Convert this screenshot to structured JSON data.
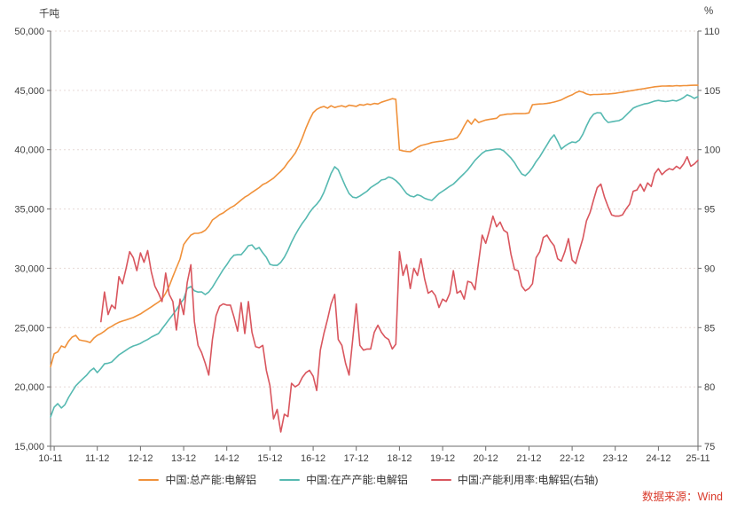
{
  "chart_data": {
    "type": "line",
    "title": "",
    "grid": "horizontal-dashed",
    "legend_position": "bottom-center",
    "left_axis": {
      "unit_label": "千吨",
      "min": 15000,
      "max": 50000,
      "tick_labels": [
        "50,000",
        "45,000",
        "40,000",
        "35,000",
        "30,000",
        "25,000",
        "20,000",
        "15,000"
      ],
      "tick_values": [
        50000,
        45000,
        40000,
        35000,
        30000,
        25000,
        20000,
        15000
      ]
    },
    "right_axis": {
      "unit_label": "%",
      "min": 75,
      "max": 110,
      "tick_labels": [
        "110",
        "105",
        "100",
        "95",
        "90",
        "85",
        "80",
        "75"
      ],
      "tick_values": [
        110,
        105,
        100,
        95,
        90,
        85,
        80,
        75
      ]
    },
    "x_axis": {
      "n_points": 181,
      "start_month": "2010-11",
      "end_month": "2025-11",
      "tick_labels": [
        "10-11",
        "11-12",
        "12-12",
        "13-12",
        "14-12",
        "15-12",
        "16-12",
        "17-12",
        "18-12",
        "19-12",
        "20-12",
        "21-12",
        "22-12",
        "23-12",
        "24-12",
        "25-11"
      ],
      "tick_indices": [
        0,
        13,
        25,
        37,
        49,
        61,
        73,
        85,
        97,
        109,
        121,
        133,
        145,
        157,
        169,
        180
      ],
      "minor_tick_indices": [
        1
      ]
    },
    "series": [
      {
        "name": "中国:总产能:电解铝",
        "axis": "left",
        "color": "#F0913A",
        "values": [
          21700,
          22800,
          22950,
          23450,
          23320,
          23850,
          24200,
          24350,
          23970,
          23900,
          23850,
          23740,
          24100,
          24350,
          24500,
          24700,
          24950,
          25100,
          25300,
          25450,
          25550,
          25650,
          25750,
          25850,
          26000,
          26150,
          26350,
          26550,
          26750,
          26950,
          27150,
          27400,
          27900,
          28500,
          29300,
          30030,
          30780,
          32000,
          32420,
          32800,
          32950,
          32950,
          33020,
          33200,
          33550,
          34070,
          34290,
          34520,
          34670,
          34890,
          35100,
          35260,
          35500,
          35750,
          36000,
          36170,
          36400,
          36600,
          36800,
          37060,
          37200,
          37400,
          37600,
          37900,
          38180,
          38500,
          38930,
          39300,
          39700,
          40280,
          41000,
          41800,
          42520,
          43120,
          43400,
          43550,
          43640,
          43500,
          43700,
          43550,
          43640,
          43700,
          43600,
          43750,
          43700,
          43650,
          43800,
          43750,
          43850,
          43800,
          43900,
          43850,
          44000,
          44100,
          44200,
          44300,
          44250,
          39980,
          39900,
          39850,
          39830,
          40000,
          40200,
          40350,
          40430,
          40500,
          40600,
          40650,
          40700,
          40730,
          40800,
          40850,
          40880,
          41000,
          41400,
          42000,
          42500,
          42150,
          42590,
          42290,
          42400,
          42500,
          42550,
          42600,
          42650,
          42900,
          42950,
          43000,
          43000,
          43040,
          43040,
          43040,
          43050,
          43100,
          43790,
          43820,
          43850,
          43870,
          43900,
          43950,
          44020,
          44100,
          44200,
          44350,
          44500,
          44620,
          44800,
          44920,
          44850,
          44700,
          44620,
          44650,
          44650,
          44670,
          44690,
          44700,
          44720,
          44750,
          44800,
          44850,
          44900,
          44950,
          45000,
          45060,
          45100,
          45150,
          45200,
          45250,
          45300,
          45330,
          45360,
          45360,
          45380,
          45360,
          45400,
          45380,
          45400,
          45410,
          45420,
          45430,
          45430
        ]
      },
      {
        "name": "中国:在产产能:电解铝",
        "axis": "left",
        "color": "#56B9B1",
        "values": [
          17470,
          18300,
          18590,
          18220,
          18500,
          19110,
          19600,
          20090,
          20400,
          20700,
          20980,
          21350,
          21580,
          21210,
          21550,
          21950,
          22000,
          22100,
          22400,
          22700,
          22900,
          23100,
          23300,
          23450,
          23550,
          23670,
          23850,
          24000,
          24200,
          24350,
          24500,
          24900,
          25300,
          25700,
          26100,
          26500,
          27000,
          27400,
          28300,
          28460,
          28100,
          28000,
          28010,
          27790,
          28000,
          28400,
          28910,
          29400,
          29900,
          30300,
          30780,
          31100,
          31150,
          31150,
          31500,
          31900,
          31970,
          31600,
          31750,
          31300,
          30930,
          30330,
          30250,
          30250,
          30500,
          30930,
          31520,
          32200,
          32800,
          33320,
          33800,
          34200,
          34700,
          35100,
          35400,
          35800,
          36400,
          37200,
          38000,
          38560,
          38300,
          37600,
          36900,
          36300,
          36000,
          35940,
          36100,
          36300,
          36500,
          36800,
          37000,
          37200,
          37440,
          37500,
          37700,
          37600,
          37400,
          37100,
          36700,
          36300,
          36100,
          36020,
          36200,
          36100,
          35900,
          35800,
          35720,
          36000,
          36300,
          36500,
          36700,
          36920,
          37100,
          37400,
          37700,
          38000,
          38300,
          38700,
          39100,
          39400,
          39700,
          39900,
          39950,
          40000,
          40050,
          40050,
          39900,
          39600,
          39300,
          38900,
          38400,
          37950,
          37810,
          38100,
          38500,
          39000,
          39400,
          39900,
          40400,
          40900,
          41250,
          40700,
          40050,
          40300,
          40500,
          40650,
          40600,
          40800,
          41300,
          42000,
          42600,
          43000,
          43120,
          43100,
          42600,
          42300,
          42350,
          42400,
          42450,
          42600,
          42900,
          43200,
          43500,
          43640,
          43750,
          43850,
          43900,
          44000,
          44100,
          44150,
          44100,
          44060,
          44100,
          44160,
          44100,
          44220,
          44390,
          44620,
          44500,
          44320,
          44470
        ]
      },
      {
        "name": "中国:产能利用率:电解铝(右轴)",
        "axis": "right",
        "color": "#D9565E",
        "values": [
          null,
          null,
          null,
          null,
          null,
          null,
          null,
          null,
          null,
          null,
          null,
          null,
          null,
          null,
          85.5,
          88.0,
          86.1,
          86.9,
          86.6,
          89.3,
          88.7,
          90.0,
          91.4,
          90.9,
          89.8,
          91.3,
          90.5,
          91.5,
          89.7,
          88.5,
          87.9,
          87.2,
          89.6,
          87.8,
          87.2,
          84.8,
          87.4,
          86.1,
          88.8,
          90.3,
          85.5,
          83.5,
          82.9,
          82.0,
          81.0,
          84.0,
          86.0,
          86.8,
          87.0,
          86.9,
          86.9,
          85.9,
          84.7,
          87.1,
          84.5,
          87.2,
          84.6,
          83.4,
          83.3,
          83.5,
          81.4,
          80.1,
          77.3,
          78.1,
          76.2,
          77.7,
          77.5,
          80.3,
          80.0,
          80.2,
          80.8,
          81.2,
          81.4,
          80.9,
          79.7,
          83.1,
          84.5,
          85.7,
          87.0,
          87.8,
          84.0,
          83.5,
          82.0,
          81.0,
          84.0,
          87.0,
          83.5,
          83.1,
          83.2,
          83.2,
          84.6,
          85.2,
          84.6,
          84.2,
          84.0,
          83.2,
          83.6,
          91.4,
          89.4,
          90.3,
          88.3,
          90.0,
          89.4,
          90.8,
          89.1,
          87.9,
          88.1,
          87.7,
          86.7,
          87.4,
          87.2,
          87.9,
          89.8,
          87.9,
          88.1,
          87.4,
          88.9,
          88.8,
          88.2,
          90.5,
          92.8,
          92.1,
          93.2,
          94.4,
          93.5,
          93.9,
          93.2,
          93.0,
          91.2,
          89.9,
          89.8,
          88.5,
          88.1,
          88.3,
          88.7,
          90.9,
          91.4,
          92.6,
          92.8,
          92.3,
          91.9,
          90.8,
          90.6,
          91.4,
          92.5,
          90.7,
          90.4,
          91.5,
          92.5,
          94.0,
          94.7,
          95.8,
          96.8,
          97.1,
          96.0,
          95.2,
          94.5,
          94.4,
          94.4,
          94.5,
          95.0,
          95.4,
          96.5,
          96.6,
          97.1,
          96.5,
          97.2,
          96.9,
          98.0,
          98.4,
          97.9,
          98.2,
          98.4,
          98.3,
          98.6,
          98.4,
          98.8,
          99.4,
          98.6,
          98.8,
          99.1
        ]
      }
    ],
    "style": {
      "axis_color": "#6b6b6b",
      "grid_color": "#e6d9d6",
      "tick_text_color": "#404040",
      "legend_text_color": "#333333"
    }
  },
  "source_note": {
    "text": "数据来源：Wind",
    "color": "#D93A2B"
  }
}
